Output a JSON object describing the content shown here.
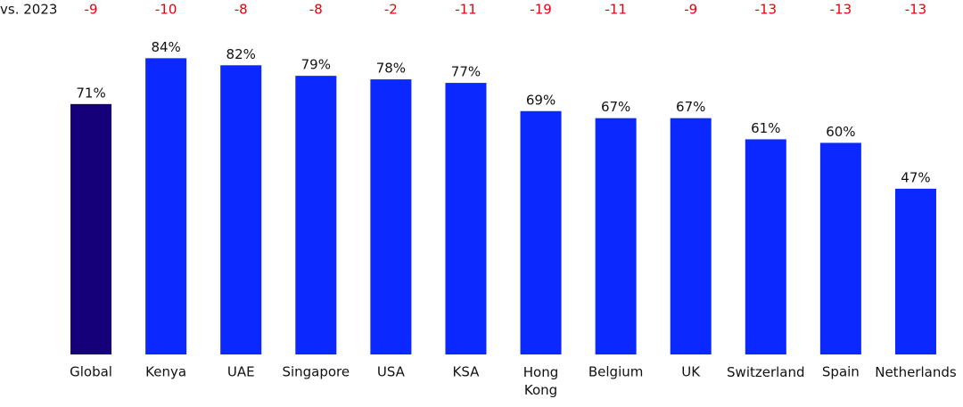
{
  "chart_data": {
    "type": "bar",
    "categories": [
      "Global",
      "Kenya",
      "UAE",
      "Singapore",
      "USA",
      "KSA",
      "Hong Kong",
      "Belgium",
      "UK",
      "Switzerland",
      "Spain",
      "Netherlands"
    ],
    "values": [
      71,
      84,
      82,
      79,
      78,
      77,
      69,
      67,
      67,
      61,
      60,
      47
    ],
    "value_labels": [
      "71%",
      "84%",
      "82%",
      "79%",
      "78%",
      "77%",
      "69%",
      "67%",
      "67%",
      "61%",
      "60%",
      "47%"
    ],
    "colors": [
      "#15007a",
      "#0a28ff",
      "#0a28ff",
      "#0a28ff",
      "#0a28ff",
      "#0a28ff",
      "#0a28ff",
      "#0a28ff",
      "#0a28ff",
      "#0a28ff",
      "#0a28ff",
      "#0a28ff"
    ],
    "change_label": "vs. 2023",
    "changes": [
      -9,
      -10,
      -8,
      -8,
      -2,
      -11,
      -19,
      -11,
      -9,
      -13,
      -13,
      -13
    ],
    "change_color": "#e5000b",
    "ylim": [
      0,
      100
    ]
  }
}
